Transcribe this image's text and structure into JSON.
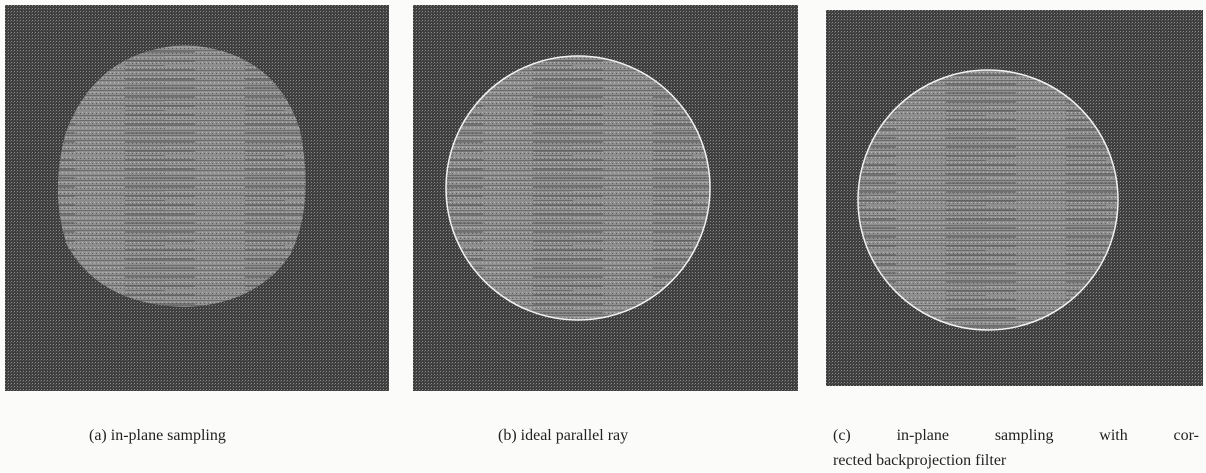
{
  "figure": {
    "panels": [
      {
        "caption": "(a) in-plane sampling"
      },
      {
        "caption": "(b) ideal parallel ray"
      },
      {
        "caption": [
          "(c) in-plane sampling with cor-",
          "rected backprojection filter"
        ]
      }
    ]
  }
}
